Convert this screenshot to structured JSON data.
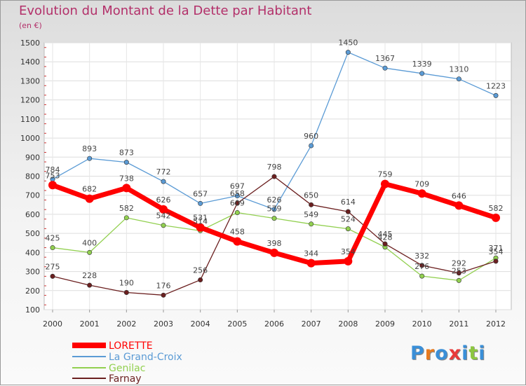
{
  "header": {
    "title": "Evolution du Montant de la Dette par Habitant",
    "subtitle": "(en €)"
  },
  "logo": {
    "text": "Proxiti",
    "letter_colors": [
      "#3a8fd8",
      "#e87a1e",
      "#3a8fd8",
      "#e83a3a",
      "#3a8fd8",
      "#8cc63f",
      "#3a8fd8"
    ]
  },
  "chart_data": {
    "type": "line",
    "title": "Evolution du Montant de la Dette par Habitant",
    "subtitle": "(en €)",
    "xlabel": "",
    "ylabel": "",
    "x": [
      "2000",
      "2001",
      "2002",
      "2003",
      "2004",
      "2005",
      "2006",
      "2007",
      "2008",
      "2009",
      "2010",
      "2011",
      "2012"
    ],
    "ylim": [
      100,
      1500
    ],
    "yticks": [
      100,
      200,
      300,
      400,
      500,
      600,
      700,
      800,
      900,
      1000,
      1100,
      1200,
      1300,
      1400,
      1500
    ],
    "grid": true,
    "legend": "bottom-left",
    "series": [
      {
        "name": "LORETTE",
        "color": "#ff0000",
        "values": [
          753,
          682,
          738,
          626,
          531,
          458,
          398,
          344,
          354,
          759,
          709,
          646,
          582
        ],
        "labels": [
          "753",
          "682",
          "738",
          "626",
          "531",
          "458",
          "398",
          "344",
          "354",
          "759",
          "709",
          "646",
          "582"
        ]
      },
      {
        "name": "La Grand-Croix",
        "color": "#5b9bd5",
        "values": [
          784,
          893,
          873,
          772,
          657,
          697,
          626,
          960,
          1450,
          1367,
          1339,
          1310,
          1223
        ],
        "labels": [
          "784",
          "893",
          "873",
          "772",
          "657",
          "697",
          "626",
          "960",
          "1450",
          "1367",
          "1339",
          "1310",
          "1223"
        ]
      },
      {
        "name": "Genilac",
        "color": "#92d050",
        "values": [
          425,
          400,
          582,
          542,
          514,
          609,
          579,
          549,
          524,
          428,
          276,
          253,
          371
        ],
        "labels": [
          "425",
          "400",
          "582",
          "542",
          "514",
          "609",
          "579",
          "549",
          "524",
          "428",
          "276",
          "253",
          "371"
        ]
      },
      {
        "name": "Farnay",
        "color": "#6b1f1f",
        "values": [
          275,
          228,
          190,
          176,
          256,
          658,
          798,
          650,
          614,
          445,
          332,
          292,
          354
        ],
        "labels": [
          "275",
          "228",
          "190",
          "176",
          "256",
          "658",
          "798",
          "650",
          "614",
          "445",
          "332",
          "292",
          "354"
        ]
      }
    ]
  }
}
